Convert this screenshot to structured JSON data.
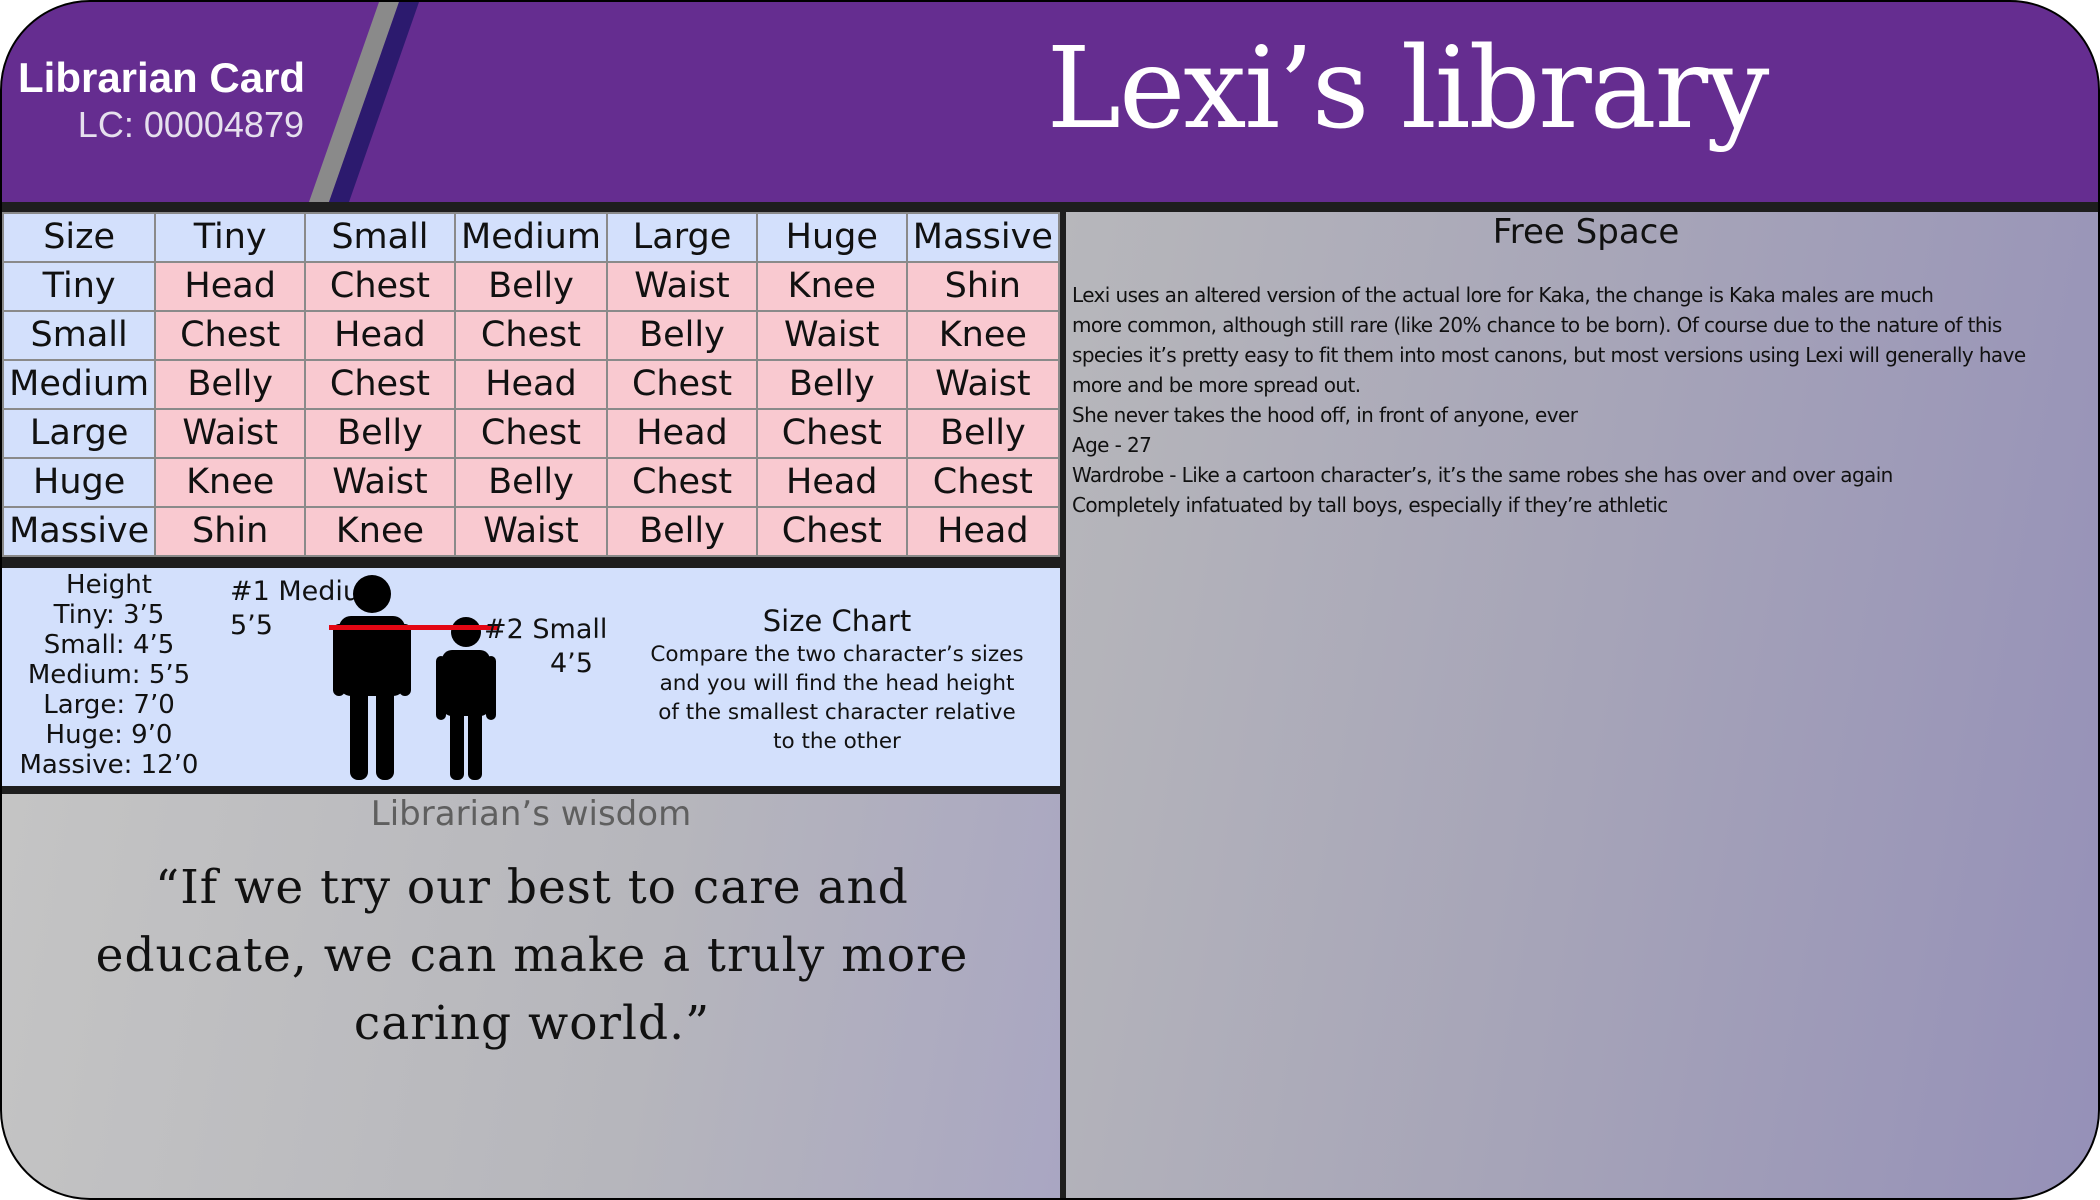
{
  "header": {
    "card_title": "Librarian Card",
    "card_id": "LC: 00004879",
    "brand_title": "Lexi’s library",
    "colors": {
      "header": "#652d90",
      "stripe_gray": "#8a8a8a",
      "stripe_navy": "#2c1a6e"
    }
  },
  "size_table": {
    "columns": [
      "Size",
      "Tiny",
      "Small",
      "Medium",
      "Large",
      "Huge",
      "Massive"
    ],
    "rows": [
      [
        "Tiny",
        "Head",
        "Chest",
        "Belly",
        "Waist",
        "Knee",
        "Shin"
      ],
      [
        "Small",
        "Chest",
        "Head",
        "Chest",
        "Belly",
        "Waist",
        "Knee"
      ],
      [
        "Medium",
        "Belly",
        "Chest",
        "Head",
        "Chest",
        "Belly",
        "Waist"
      ],
      [
        "Large",
        "Waist",
        "Belly",
        "Chest",
        "Head",
        "Chest",
        "Belly"
      ],
      [
        "Huge",
        "Knee",
        "Waist",
        "Belly",
        "Chest",
        "Head",
        "Chest"
      ],
      [
        "Massive",
        "Shin",
        "Knee",
        "Waist",
        "Belly",
        "Chest",
        "Head"
      ]
    ],
    "colors": {
      "header_cell": "#d3e0fc",
      "body_cell": "#f9c9d0"
    }
  },
  "heights": {
    "title": "Height",
    "items": [
      "Tiny: 3’5",
      "Small: 4’5",
      "Medium: 5’5",
      "Large: 7’0",
      "Huge: 9’0",
      "Massive: 12’0"
    ],
    "figure1_label": "#1 Medium",
    "figure1_height": "5’5",
    "figure2_label": "#2 Small",
    "figure2_height": "4’5",
    "size_chart_title": "Size Chart",
    "size_chart_desc": [
      "Compare the two character’s sizes",
      "and you will find the head height",
      "of the smallest character relative",
      "to the other"
    ]
  },
  "wisdom": {
    "title": "Librarian’s wisdom",
    "quote": "“If we try our best to care and educate, we can make a truly more caring world.”"
  },
  "free_space": {
    "title": "Free Space",
    "lines": [
      "Lexi uses an altered version of the actual lore for Kaka, the change is Kaka males are much",
      "more common, although still rare (like 20% chance to be born). Of course due to the nature of this",
      "species it’s pretty easy to fit them into most canons, but most versions using Lexi will generally have",
      "more and be more spread out.",
      "She never takes the hood off, in front of anyone, ever",
      "Age - 27",
      "Wardrobe - Like a cartoon character’s, it’s the same robes she has over and over again",
      "Completely infatuated by tall boys, especially if they’re athletic"
    ]
  }
}
